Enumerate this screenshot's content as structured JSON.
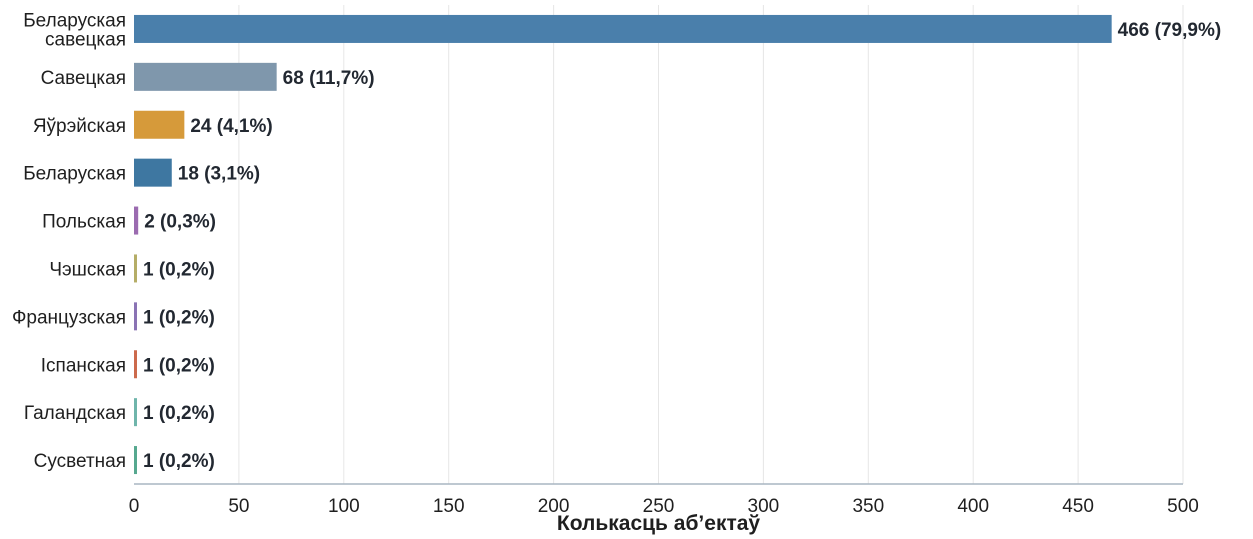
{
  "chart_data": {
    "type": "bar",
    "orientation": "horizontal",
    "xlabel": "Колькасць аб’ектаў",
    "ylabel": "",
    "xlim": [
      0,
      500
    ],
    "xticks": [
      "0",
      "50",
      "100",
      "150",
      "200",
      "250",
      "300",
      "350",
      "400",
      "450",
      "500"
    ],
    "grid": true,
    "categories": [
      [
        "Беларуская",
        "савецкая"
      ],
      [
        "Савецкая"
      ],
      [
        "Яўрэйская"
      ],
      [
        "Беларуская"
      ],
      [
        "Польская"
      ],
      [
        "Чэшская"
      ],
      [
        "Французская"
      ],
      [
        "Іспанская"
      ],
      [
        "Галандская"
      ],
      [
        "Сусветная"
      ]
    ],
    "values": [
      466,
      68,
      24,
      18,
      2,
      1,
      1,
      1,
      1,
      1
    ],
    "value_labels": [
      "466 (79,9%)",
      "68 (11,7%)",
      "24 (4,1%)",
      "18 (3,1%)",
      "2 (0,3%)",
      "1 (0,2%)",
      "1 (0,2%)",
      "1 (0,2%)",
      "1 (0,2%)",
      "1 (0,2%)"
    ],
    "colors": [
      "#4a7fab",
      "#7f97ac",
      "#d69a3a",
      "#3e77a1",
      "#9b6bb0",
      "#b5ad67",
      "#8a73b4",
      "#cc6a4c",
      "#6fb5ab",
      "#56a88f"
    ]
  }
}
